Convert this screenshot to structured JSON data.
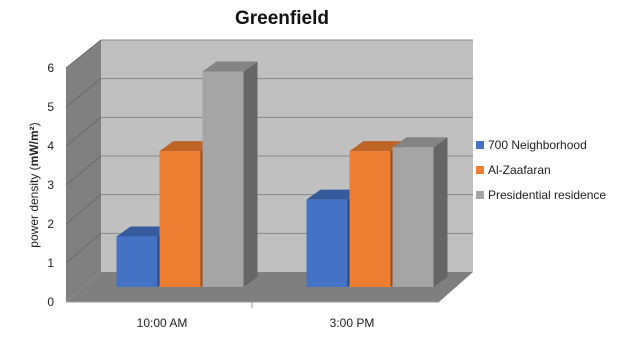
{
  "chart_data": {
    "type": "bar",
    "title": "Greenfield",
    "xlabel": "",
    "ylabel": "power density (mW/m²)",
    "ylabel_prefix": "power density (",
    "ylabel_unit": "mW/m²",
    "ylabel_suffix": ")",
    "ylim": [
      0,
      6
    ],
    "yticks": [
      "0",
      "1",
      "2",
      "3",
      "4",
      "5",
      "6"
    ],
    "categories": [
      "10:00 AM",
      "3:00 PM"
    ],
    "series": [
      {
        "name": "700 Neighborhood",
        "values": [
          1.3,
          2.25
        ],
        "color": "#4472C4"
      },
      {
        "name": "Al-Zaafaran",
        "values": [
          3.5,
          3.5
        ],
        "color": "#ED7D31"
      },
      {
        "name": "Presidential residence",
        "values": [
          5.55,
          3.6
        ],
        "color": "#A5A5A5"
      }
    ],
    "style": "3d-clustered-column",
    "grid": true,
    "legend_position": "right"
  }
}
